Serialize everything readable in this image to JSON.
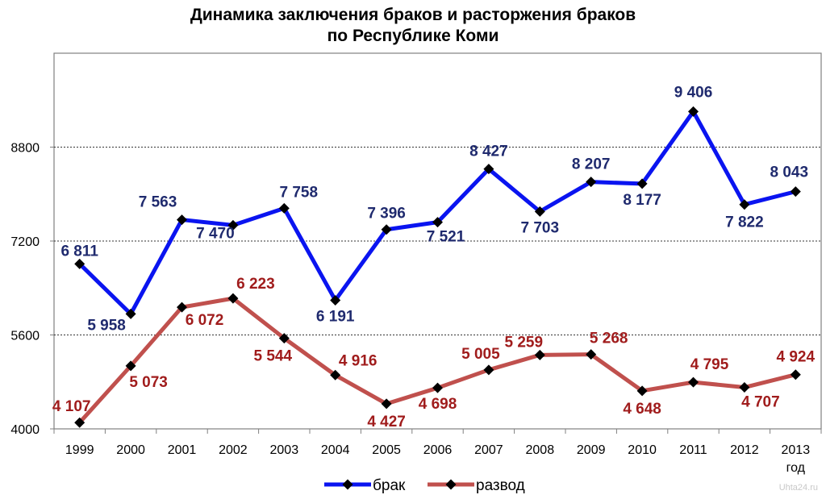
{
  "title_line1": "Динамика заключения браков и расторжения браков",
  "title_line2": "по Республике Коми",
  "watermark": "Uhta24.ru",
  "chart_data": {
    "type": "line",
    "categories": [
      "1999",
      "2000",
      "2001",
      "2002",
      "2003",
      "2004",
      "2005",
      "2006",
      "2007",
      "2008",
      "2009",
      "2010",
      "2011",
      "2012",
      "2013"
    ],
    "x_unit_label": "год",
    "ylim": [
      4000,
      10400
    ],
    "yticks": [
      4000,
      5600,
      7200,
      8800
    ],
    "grid": "horizontal dashed",
    "legend_position": "bottom",
    "series": [
      {
        "name": "брак",
        "color": "#0a14f0",
        "label_color": "#1f2a6e",
        "values": [
          6811,
          5958,
          7563,
          7470,
          7758,
          6191,
          7396,
          7521,
          8427,
          7703,
          8207,
          8177,
          9406,
          7822,
          8043
        ],
        "labels": [
          "6 811",
          "5 958",
          "7 563",
          "7 470",
          "7 758",
          "6 191",
          "7 396",
          "7 521",
          "8 427",
          "7 703",
          "8 207",
          "8 177",
          "9 406",
          "7 822",
          "8 043"
        ]
      },
      {
        "name": "развод",
        "color": "#c0504d",
        "label_color": "#a01c1c",
        "values": [
          4107,
          5073,
          6072,
          6223,
          5544,
          4916,
          4427,
          4698,
          5005,
          5259,
          5268,
          4648,
          4795,
          4707,
          4924
        ],
        "labels": [
          "4 107",
          "5 073",
          "6 072",
          "6 223",
          "5 544",
          "4 916",
          "4 427",
          "4 698",
          "5 005",
          "5 259",
          "5 268",
          "4 648",
          "4 795",
          "4 707",
          "4 924"
        ]
      }
    ]
  }
}
